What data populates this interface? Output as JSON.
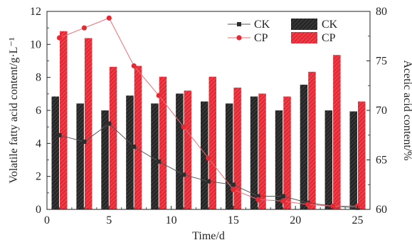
{
  "chart_data": {
    "type": "bar+line",
    "x_label": "Time/d",
    "y_left_label": "Volatile fatty acid content/g·L⁻¹",
    "y_right_label": "Acetic acid content/%",
    "x_range": [
      0,
      26
    ],
    "x_ticks": [
      0,
      5,
      10,
      15,
      20,
      25
    ],
    "y_left_range": [
      0,
      12
    ],
    "y_left_ticks": [
      0,
      2,
      4,
      6,
      8,
      10,
      12
    ],
    "y_right_range": [
      60,
      80
    ],
    "y_right_ticks": [
      60,
      65,
      70,
      75,
      80
    ],
    "grid": false,
    "legend_position": "top-right",
    "days": [
      1,
      3,
      5,
      7,
      9,
      11,
      13,
      15,
      17,
      19,
      21,
      23,
      25
    ],
    "bar_series": [
      {
        "name": "CK",
        "axis": "right",
        "color": "#2b2b2b",
        "values": [
          71.4,
          70.7,
          70.0,
          71.5,
          70.7,
          71.7,
          70.9,
          70.7,
          71.4,
          70.0,
          72.6,
          70.0,
          69.9
        ]
      },
      {
        "name": "CP",
        "axis": "right",
        "color": "#e8313c",
        "values": [
          78.0,
          77.3,
          74.4,
          74.5,
          73.4,
          72.0,
          73.4,
          72.3,
          71.7,
          71.4,
          73.9,
          75.6,
          70.9
        ]
      }
    ],
    "line_series": [
      {
        "name": "CK",
        "axis": "left",
        "marker": "square",
        "color": "#3a3a3a",
        "values": [
          4.5,
          4.1,
          5.2,
          3.8,
          2.9,
          2.1,
          1.7,
          1.5,
          0.8,
          0.8,
          0.4,
          0.2,
          0.1
        ]
      },
      {
        "name": "CP",
        "axis": "left",
        "marker": "circle",
        "color": "#e8313c",
        "values": [
          10.4,
          11.0,
          11.6,
          8.7,
          6.9,
          5.0,
          3.1,
          1.2,
          0.6,
          0.5,
          0.3,
          0.2,
          0.2
        ]
      }
    ]
  }
}
